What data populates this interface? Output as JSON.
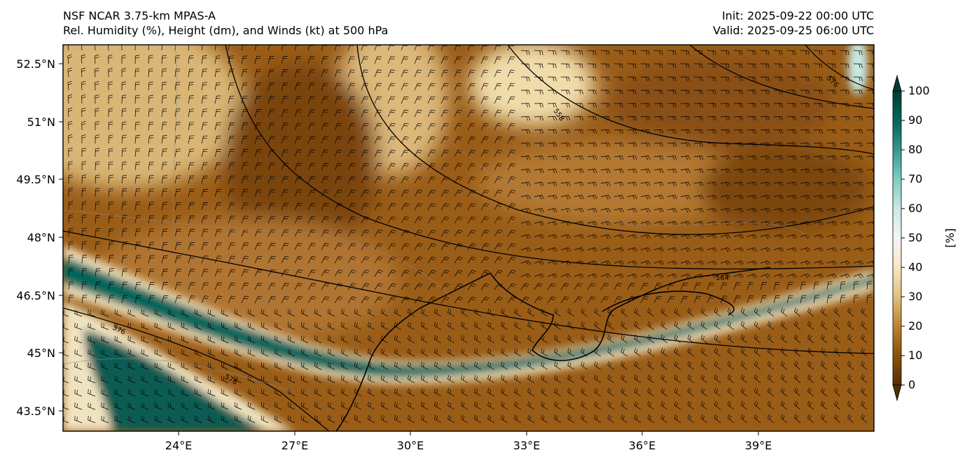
{
  "header": {
    "model": "NSF NCAR 3.75-km MPAS-A",
    "fields": "Rel. Humidity (%), Height (dm), and Winds (kt) at 500 hPa",
    "init": "Init: 2025-09-22 00:00 UTC",
    "valid": "Valid: 2025-09-25 06:00 UTC"
  },
  "map": {
    "lon_range": [
      21,
      42
    ],
    "lat_range": [
      43,
      53
    ],
    "lon_ticks": [
      "24°E",
      "27°E",
      "30°E",
      "33°E",
      "36°E",
      "39°E"
    ],
    "lat_ticks": [
      "52.5°N",
      "51°N",
      "49.5°N",
      "48°N",
      "46.5°N",
      "45°N",
      "43.5°N"
    ],
    "contour_labels": [
      "558",
      "564",
      "576",
      "576",
      "576"
    ],
    "colors": {
      "dry": "#8c510a",
      "mid": "#f6e8c3",
      "moist": "#01665e",
      "very_moist": "#003c30"
    }
  },
  "colorbar": {
    "ticks": [
      "0",
      "10",
      "20",
      "30",
      "40",
      "50",
      "60",
      "70",
      "80",
      "90",
      "100"
    ],
    "unit_label": "[%]",
    "colormap": "BrBG"
  }
}
